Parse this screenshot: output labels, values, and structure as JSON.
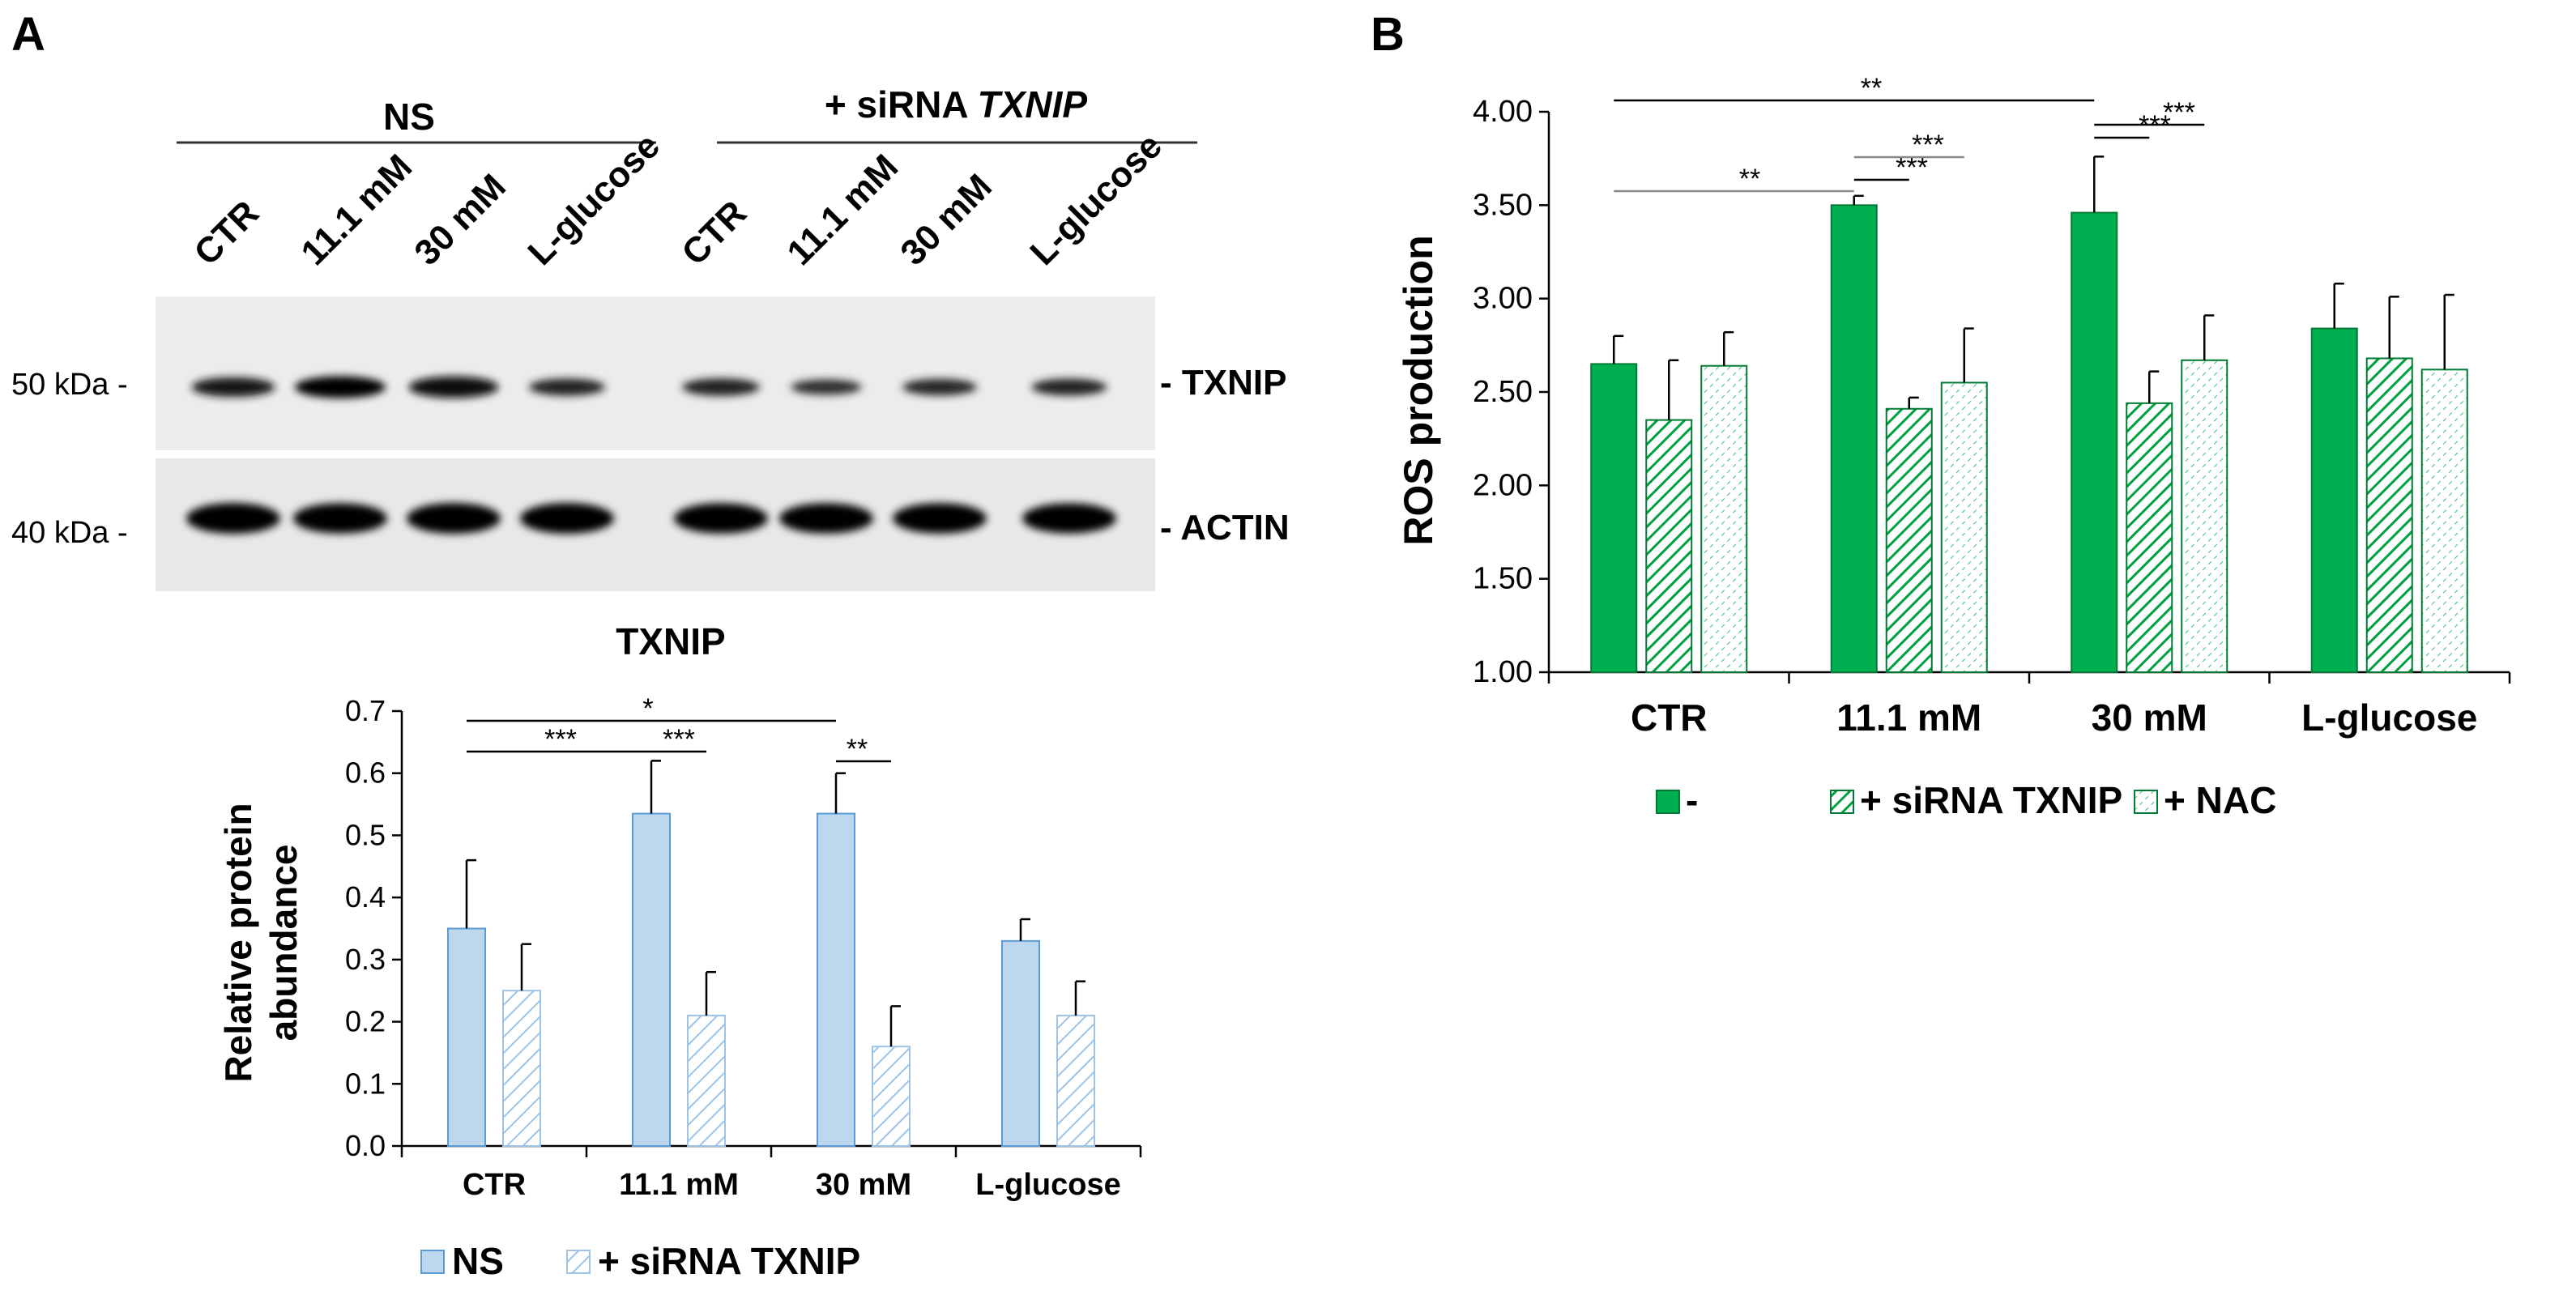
{
  "panels": {
    "a_label": "A",
    "b_label": "B"
  },
  "blot": {
    "group_ns": "NS",
    "group_sirna_prefix": "+ siRNA ",
    "group_sirna_gene": "TXNIP",
    "lanes": [
      "CTR",
      "11.1 mM",
      "30 mM",
      "L-glucose",
      "CTR",
      "11.1 mM",
      "30 mM",
      "L-glucose"
    ],
    "marker_txnip": "50 kDa -",
    "marker_actin": "40 kDa -",
    "band_txnip": "- TXNIP",
    "band_actin": "- ACTIN",
    "txnip_band_intensity": [
      0.78,
      0.95,
      0.92,
      0.62,
      0.65,
      0.5,
      0.58,
      0.6
    ],
    "actin_band_intensity": [
      1.0,
      0.97,
      1.0,
      1.0,
      0.98,
      0.98,
      0.98,
      0.96
    ]
  },
  "chart_data": [
    {
      "type": "bar",
      "title": "TXNIP",
      "ylabel_line1": "Relative protein",
      "ylabel_line2": "abundance",
      "xlabel": "",
      "ylim": [
        0,
        0.7
      ],
      "yticks": [
        "0.0",
        "0.1",
        "0.2",
        "0.3",
        "0.4",
        "0.5",
        "0.6",
        "0.7"
      ],
      "categories": [
        "CTR",
        "11.1 mM",
        "30 mM",
        "L-glucose"
      ],
      "series": [
        {
          "name": "NS",
          "values": [
            0.35,
            0.535,
            0.535,
            0.33
          ],
          "errors": [
            0.11,
            0.085,
            0.065,
            0.035
          ],
          "color": "#bdd7ee"
        },
        {
          "name": "+ siRNA TXNIP",
          "values": [
            0.25,
            0.21,
            0.16,
            0.21
          ],
          "errors": [
            0.075,
            0.07,
            0.065,
            0.055
          ],
          "color": "#deebf7"
        }
      ],
      "legend": [
        "NS",
        "+ siRNA TXNIP"
      ],
      "significance": [
        {
          "label": "*",
          "from": [
            0,
            0
          ],
          "to": [
            2,
            0
          ]
        },
        {
          "label": "***",
          "from": [
            0,
            0
          ],
          "to": [
            1,
            0
          ]
        },
        {
          "label": "***",
          "from": [
            1,
            0
          ],
          "to": [
            1,
            1
          ]
        },
        {
          "label": "**",
          "from": [
            2,
            0
          ],
          "to": [
            2,
            1
          ]
        }
      ]
    },
    {
      "type": "bar",
      "title": "",
      "ylabel": "ROS production",
      "xlabel": "",
      "ylim": [
        1.0,
        4.0
      ],
      "yticks": [
        "1.00",
        "1.50",
        "2.00",
        "2.50",
        "3.00",
        "3.50",
        "4.00"
      ],
      "categories": [
        "CTR",
        "11.1 mM",
        "30 mM",
        "L-glucose"
      ],
      "series": [
        {
          "name": "-",
          "values": [
            2.65,
            3.5,
            3.46,
            2.84
          ],
          "errors": [
            0.15,
            0.05,
            0.3,
            0.24
          ],
          "color": "#00b050"
        },
        {
          "name": "+ siRNA TXNIP",
          "values": [
            2.35,
            2.41,
            2.44,
            2.68
          ],
          "errors": [
            0.32,
            0.06,
            0.17,
            0.33
          ],
          "color": "#00b050"
        },
        {
          "name": "+ NAC",
          "values": [
            2.64,
            2.55,
            2.67,
            2.62
          ],
          "errors": [
            0.18,
            0.29,
            0.24,
            0.4
          ],
          "color": "#00b050"
        }
      ],
      "legend": [
        "-",
        "+ siRNA TXNIP",
        "+ NAC"
      ],
      "significance": [
        {
          "label": "**",
          "from": [
            0,
            0
          ],
          "to": [
            2,
            0
          ]
        },
        {
          "label": "**",
          "from": [
            0,
            0
          ],
          "to": [
            1,
            0
          ]
        },
        {
          "label": "***",
          "from": [
            1,
            0
          ],
          "to": [
            1,
            1
          ]
        },
        {
          "label": "***",
          "from": [
            1,
            0
          ],
          "to": [
            1,
            2
          ]
        },
        {
          "label": "***",
          "from": [
            2,
            0
          ],
          "to": [
            2,
            1
          ]
        },
        {
          "label": "***",
          "from": [
            2,
            0
          ],
          "to": [
            2,
            2
          ]
        }
      ]
    }
  ]
}
